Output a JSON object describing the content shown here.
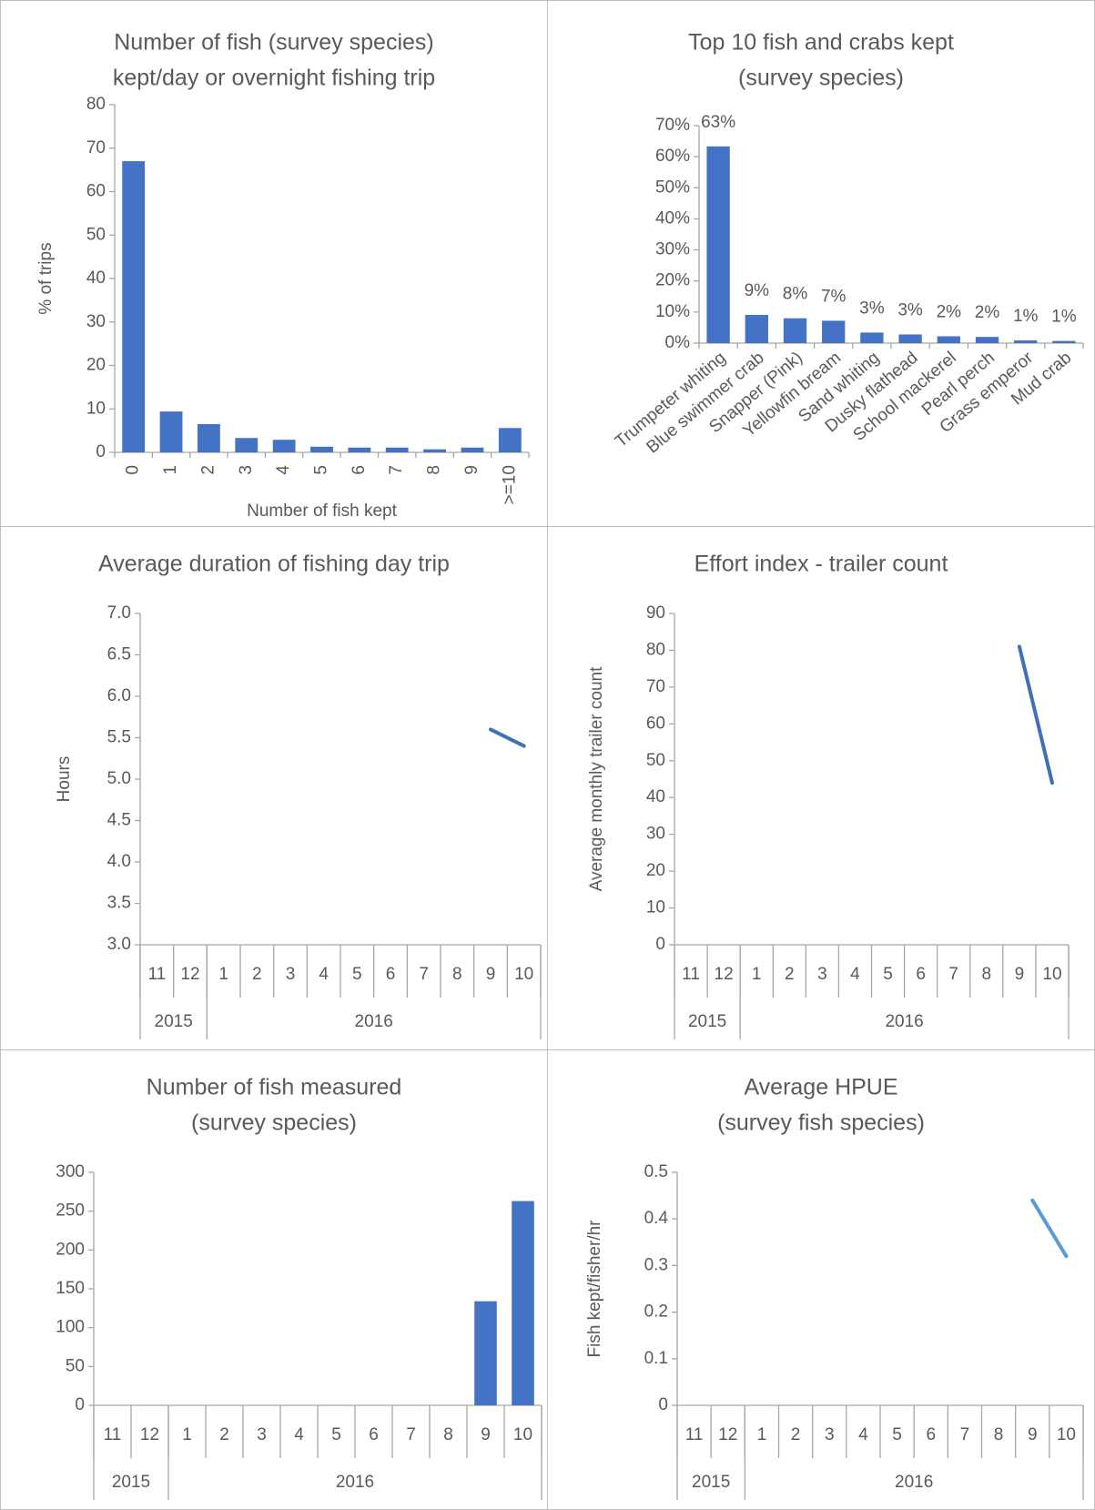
{
  "chart_data": [
    {
      "type": "bar",
      "title": [
        "Number of fish (survey species)",
        "kept/day or overnight fishing trip"
      ],
      "x_label": "Number of fish kept",
      "y_label": "% of trips",
      "categories": [
        "0",
        "1",
        "2",
        "3",
        "4",
        "5",
        "6",
        "7",
        "8",
        "9",
        ">=10"
      ],
      "values": [
        67,
        9.4,
        6.5,
        3.3,
        2.9,
        1.3,
        1.1,
        1.1,
        0.7,
        1.1,
        5.6
      ],
      "color": "#4472c4",
      "ylim": [
        0,
        80
      ],
      "yticks": [
        0,
        10,
        20,
        30,
        40,
        50,
        60,
        70,
        80
      ]
    },
    {
      "type": "bar",
      "title": [
        "Top 10 fish and crabs kept",
        "(survey species)"
      ],
      "categories": [
        "Trumpeter whiting",
        "Blue swimmer crab",
        "Snapper (Pink)",
        "Yellowfin bream",
        "Sand whiting",
        "Dusky flathead",
        "School mackerel",
        "Pearl perch",
        "Grass emperor",
        "Mud crab"
      ],
      "values": [
        63.3,
        9.1,
        8.0,
        7.2,
        3.4,
        2.8,
        2.2,
        2.0,
        0.9,
        0.7
      ],
      "value_labels": [
        "63%",
        "9%",
        "8%",
        "7%",
        "3%",
        "3%",
        "2%",
        "2%",
        "1%",
        "1%"
      ],
      "color": "#4472c4",
      "ylim": [
        0,
        70
      ],
      "yticks": [
        {
          "value": 0,
          "label": "0%"
        },
        {
          "value": 10,
          "label": "10%"
        },
        {
          "value": 20,
          "label": "20%"
        },
        {
          "value": 30,
          "label": "30%"
        },
        {
          "value": 40,
          "label": "40%"
        },
        {
          "value": 50,
          "label": "50%"
        },
        {
          "value": 60,
          "label": "60%"
        },
        {
          "value": 70,
          "label": "70%"
        }
      ]
    },
    {
      "type": "line",
      "title": [
        "Average duration of fishing day trip"
      ],
      "y_label": "Hours",
      "categories": [
        "11",
        "12",
        "1",
        "2",
        "3",
        "4",
        "5",
        "6",
        "7",
        "8",
        "9",
        "10"
      ],
      "year_groups": [
        {
          "label": "2015",
          "count": 2
        },
        {
          "label": "2016",
          "count": 10
        }
      ],
      "values": [
        null,
        null,
        null,
        null,
        null,
        null,
        null,
        null,
        null,
        null,
        5.6,
        5.4
      ],
      "color": "#3f6fb6",
      "ylim": [
        3,
        7
      ],
      "yticks": [
        {
          "value": 3,
          "label": "3.0"
        },
        3.5,
        {
          "value": 4,
          "label": "4.0"
        },
        4.5,
        {
          "value": 5,
          "label": "5.0"
        },
        5.5,
        {
          "value": 6,
          "label": "6.0"
        },
        6.5,
        {
          "value": 7,
          "label": "7.0"
        }
      ]
    },
    {
      "type": "line",
      "title": [
        "Effort index - trailer count"
      ],
      "y_label": "Average monthly trailer count",
      "categories": [
        "11",
        "12",
        "1",
        "2",
        "3",
        "4",
        "5",
        "6",
        "7",
        "8",
        "9",
        "10"
      ],
      "year_groups": [
        {
          "label": "2015",
          "count": 2
        },
        {
          "label": "2016",
          "count": 10
        }
      ],
      "values": [
        null,
        null,
        null,
        null,
        null,
        null,
        null,
        null,
        null,
        null,
        81,
        44
      ],
      "color": "#3f6fb6",
      "ylim": [
        0,
        90
      ],
      "yticks": [
        0,
        10,
        20,
        30,
        40,
        50,
        60,
        70,
        80,
        90
      ]
    },
    {
      "type": "bar",
      "title": [
        "Number of fish measured",
        "(survey species)"
      ],
      "categories": [
        "11",
        "12",
        "1",
        "2",
        "3",
        "4",
        "5",
        "6",
        "7",
        "8",
        "9",
        "10"
      ],
      "year_groups": [
        {
          "label": "2015",
          "count": 2
        },
        {
          "label": "2016",
          "count": 10
        }
      ],
      "values": [
        null,
        null,
        null,
        null,
        null,
        null,
        null,
        null,
        null,
        null,
        134,
        263
      ],
      "color": "#4472c4",
      "ylim": [
        0,
        300
      ],
      "yticks": [
        0,
        50,
        100,
        150,
        200,
        250,
        300
      ]
    },
    {
      "type": "line",
      "title": [
        "Average HPUE",
        "(survey fish species)"
      ],
      "y_label": "Fish kept/fisher/hr",
      "categories": [
        "11",
        "12",
        "1",
        "2",
        "3",
        "4",
        "5",
        "6",
        "7",
        "8",
        "9",
        "10"
      ],
      "year_groups": [
        {
          "label": "2015",
          "count": 2
        },
        {
          "label": "2016",
          "count": 10
        }
      ],
      "values": [
        null,
        null,
        null,
        null,
        null,
        null,
        null,
        null,
        null,
        null,
        0.44,
        0.32
      ],
      "color": "#5b9bd5",
      "ylim": [
        0,
        0.5
      ],
      "yticks": [
        0,
        0.1,
        0.2,
        0.3,
        0.4,
        0.5
      ]
    }
  ]
}
